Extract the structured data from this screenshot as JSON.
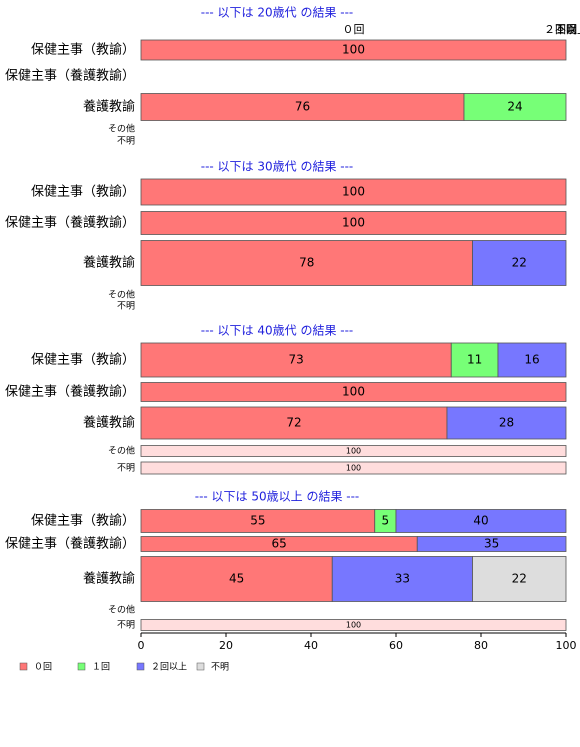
{
  "chart_data": [
    {
      "type": "bar",
      "title": "--- 以下は 20歳代 の結果 ---",
      "categories": [
        "保健主事（教諭）",
        "保健主事（養護教諭）",
        "養護教諭",
        "その他",
        "不明"
      ],
      "series": [
        {
          "name": "０回",
          "color": "#ff7777",
          "values": [
            100,
            null,
            76,
            null,
            null
          ]
        },
        {
          "name": "１回",
          "color": "#77ff77",
          "values": [
            0,
            null,
            24,
            null,
            null
          ]
        },
        {
          "name": "２回以上",
          "color": "#7777ff",
          "values": [
            0,
            null,
            0,
            null,
            null
          ]
        },
        {
          "name": "不明",
          "color": "#dddddd",
          "values": [
            0,
            null,
            0,
            null,
            null
          ]
        }
      ]
    },
    {
      "type": "bar",
      "title": "--- 以下は 30歳代 の結果 ---",
      "categories": [
        "保健主事（教諭）",
        "保健主事（養護教諭）",
        "養護教諭",
        "その他",
        "不明"
      ],
      "series": [
        {
          "name": "０回",
          "color": "#ff7777",
          "values": [
            100,
            100,
            78,
            null,
            null
          ]
        },
        {
          "name": "１回",
          "color": "#77ff77",
          "values": [
            0,
            0,
            0,
            null,
            null
          ]
        },
        {
          "name": "２回以上",
          "color": "#7777ff",
          "values": [
            0,
            0,
            22,
            null,
            null
          ]
        },
        {
          "name": "不明",
          "color": "#dddddd",
          "values": [
            0,
            0,
            0,
            null,
            null
          ]
        }
      ]
    },
    {
      "type": "bar",
      "title": "--- 以下は 40歳代 の結果 ---",
      "categories": [
        "保健主事（教諭）",
        "保健主事（養護教諭）",
        "養護教諭",
        "その他",
        "不明"
      ],
      "series": [
        {
          "name": "０回",
          "color": "#ff7777",
          "values": [
            73,
            100,
            72,
            100,
            100
          ]
        },
        {
          "name": "１回",
          "color": "#77ff77",
          "values": [
            11,
            0,
            0,
            0,
            0
          ]
        },
        {
          "name": "２回以上",
          "color": "#7777ff",
          "values": [
            16,
            0,
            28,
            0,
            0
          ]
        },
        {
          "name": "不明",
          "color": "#dddddd",
          "values": [
            0,
            0,
            0,
            0,
            0
          ]
        }
      ]
    },
    {
      "type": "bar",
      "title": "--- 以下は 50歳以上 の結果 ---",
      "categories": [
        "保健主事（教諭）",
        "保健主事（養護教諭）",
        "養護教諭",
        "その他",
        "不明"
      ],
      "series": [
        {
          "name": "０回",
          "color": "#ff7777",
          "values": [
            55,
            65,
            45,
            null,
            100
          ]
        },
        {
          "name": "１回",
          "color": "#77ff77",
          "values": [
            5,
            0,
            0,
            null,
            0
          ]
        },
        {
          "name": "２回以上",
          "color": "#7777ff",
          "values": [
            40,
            35,
            33,
            null,
            0
          ]
        },
        {
          "name": "不明",
          "color": "#dddddd",
          "values": [
            0,
            0,
            22,
            null,
            0
          ]
        }
      ],
      "xlim": [
        0,
        100
      ],
      "xticks": [
        0,
        20,
        40,
        60,
        80,
        100
      ]
    }
  ]
}
